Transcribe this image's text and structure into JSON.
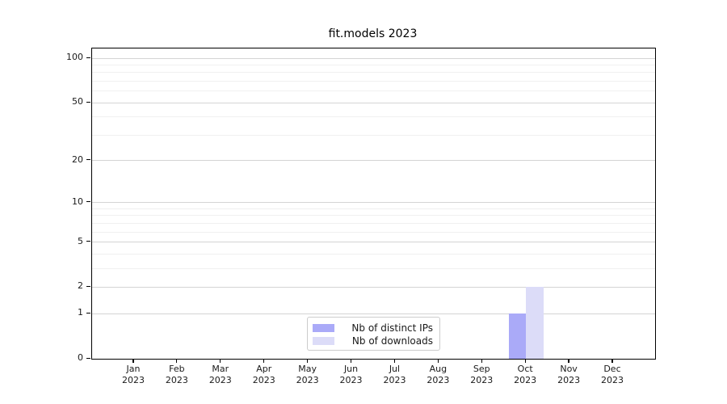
{
  "chart_data": {
    "type": "bar",
    "title": "fit.models 2023",
    "categories": [
      "Jan 2023",
      "Feb 2023",
      "Mar 2023",
      "Apr 2023",
      "May 2023",
      "Jun 2023",
      "Jul 2023",
      "Aug 2023",
      "Sep 2023",
      "Oct 2023",
      "Nov 2023",
      "Dec 2023"
    ],
    "series": [
      {
        "name": "Nb of distinct IPs",
        "color": "#aaaaf8",
        "values": [
          0,
          0,
          0,
          0,
          0,
          0,
          0,
          0,
          0,
          1,
          0,
          0
        ]
      },
      {
        "name": "Nb of downloads",
        "color": "#dcdcf8",
        "values": [
          0,
          0,
          0,
          0,
          0,
          0,
          0,
          0,
          0,
          2,
          0,
          0
        ]
      }
    ],
    "xlabel": "",
    "ylabel": "",
    "yscale": "log1p",
    "ylim": [
      0,
      100
    ],
    "yticks": [
      0,
      1,
      2,
      5,
      10,
      20,
      50,
      100
    ],
    "yticks_minor": [
      3,
      4,
      6,
      7,
      8,
      9,
      30,
      40,
      60,
      70,
      80,
      90
    ],
    "grid": "horizontal",
    "legend_position": "lower center"
  },
  "colors": {
    "background": "#ffffff",
    "axis": "#000000",
    "text": "#1a1a1a",
    "grid_major": "#d4d4d4",
    "grid_minor": "#f0f0f0",
    "legend_border": "#cccccc"
  }
}
